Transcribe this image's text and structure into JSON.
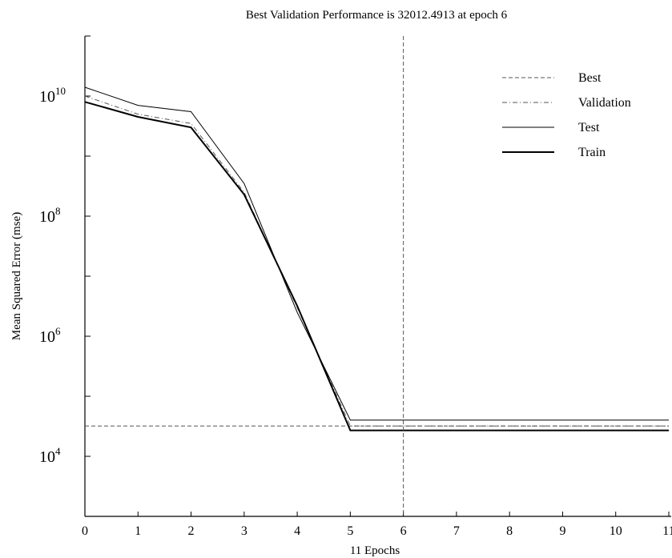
{
  "chart_data": {
    "type": "line",
    "title": "Best Validation Performance is 32012.4913 at epoch 6",
    "xlabel": "11 Epochs",
    "ylabel": "Mean Squared Error (mse)",
    "xlim": [
      0,
      11
    ],
    "ylim": [
      1000,
      100000000000.0
    ],
    "yscale": "log",
    "x_ticks": [
      "0",
      "1",
      "2",
      "3",
      "4",
      "5",
      "6",
      "7",
      "8",
      "9",
      "10",
      "11"
    ],
    "y_ticks": [
      {
        "base": "10",
        "exp": "4",
        "value": 10000
      },
      {
        "base": "10",
        "exp": "6",
        "value": 1000000
      },
      {
        "base": "10",
        "exp": "8",
        "value": 100000000
      },
      {
        "base": "10",
        "exp": "10",
        "value": 10000000000
      }
    ],
    "legend_position": "top-right",
    "best": {
      "epoch": 6,
      "value": 32012.4913
    },
    "series": [
      {
        "name": "Best",
        "style": "dashed-thin",
        "x": [
          0,
          11
        ],
        "y": [
          32012.4913,
          32012.4913
        ]
      },
      {
        "name": "Validation",
        "style": "dashdot",
        "x": [
          0,
          1,
          2,
          3,
          4,
          5,
          6,
          7,
          8,
          9,
          10,
          11
        ],
        "y": [
          10000000000,
          5000000000,
          3500000000,
          250000000,
          3000000,
          32012.4913,
          32012.4913,
          32012.4913,
          32012.4913,
          32012.4913,
          32012.4913,
          32012.4913
        ]
      },
      {
        "name": "Test",
        "style": "solid-thin",
        "x": [
          0,
          1,
          2,
          3,
          4,
          5,
          6,
          7,
          8,
          9,
          10,
          11
        ],
        "y": [
          14000000000,
          7000000000,
          5500000000,
          350000000,
          2500000,
          40000,
          40000,
          40000,
          40000,
          40000,
          40000,
          40000
        ]
      },
      {
        "name": "Train",
        "style": "solid-thick",
        "x": [
          0,
          1,
          2,
          3,
          4,
          5,
          6,
          7,
          8,
          9,
          10,
          11
        ],
        "y": [
          8000000000,
          4500000000,
          3000000000,
          230000000,
          3200000,
          27000,
          27000,
          27000,
          27000,
          27000,
          27000,
          27000
        ]
      }
    ]
  }
}
